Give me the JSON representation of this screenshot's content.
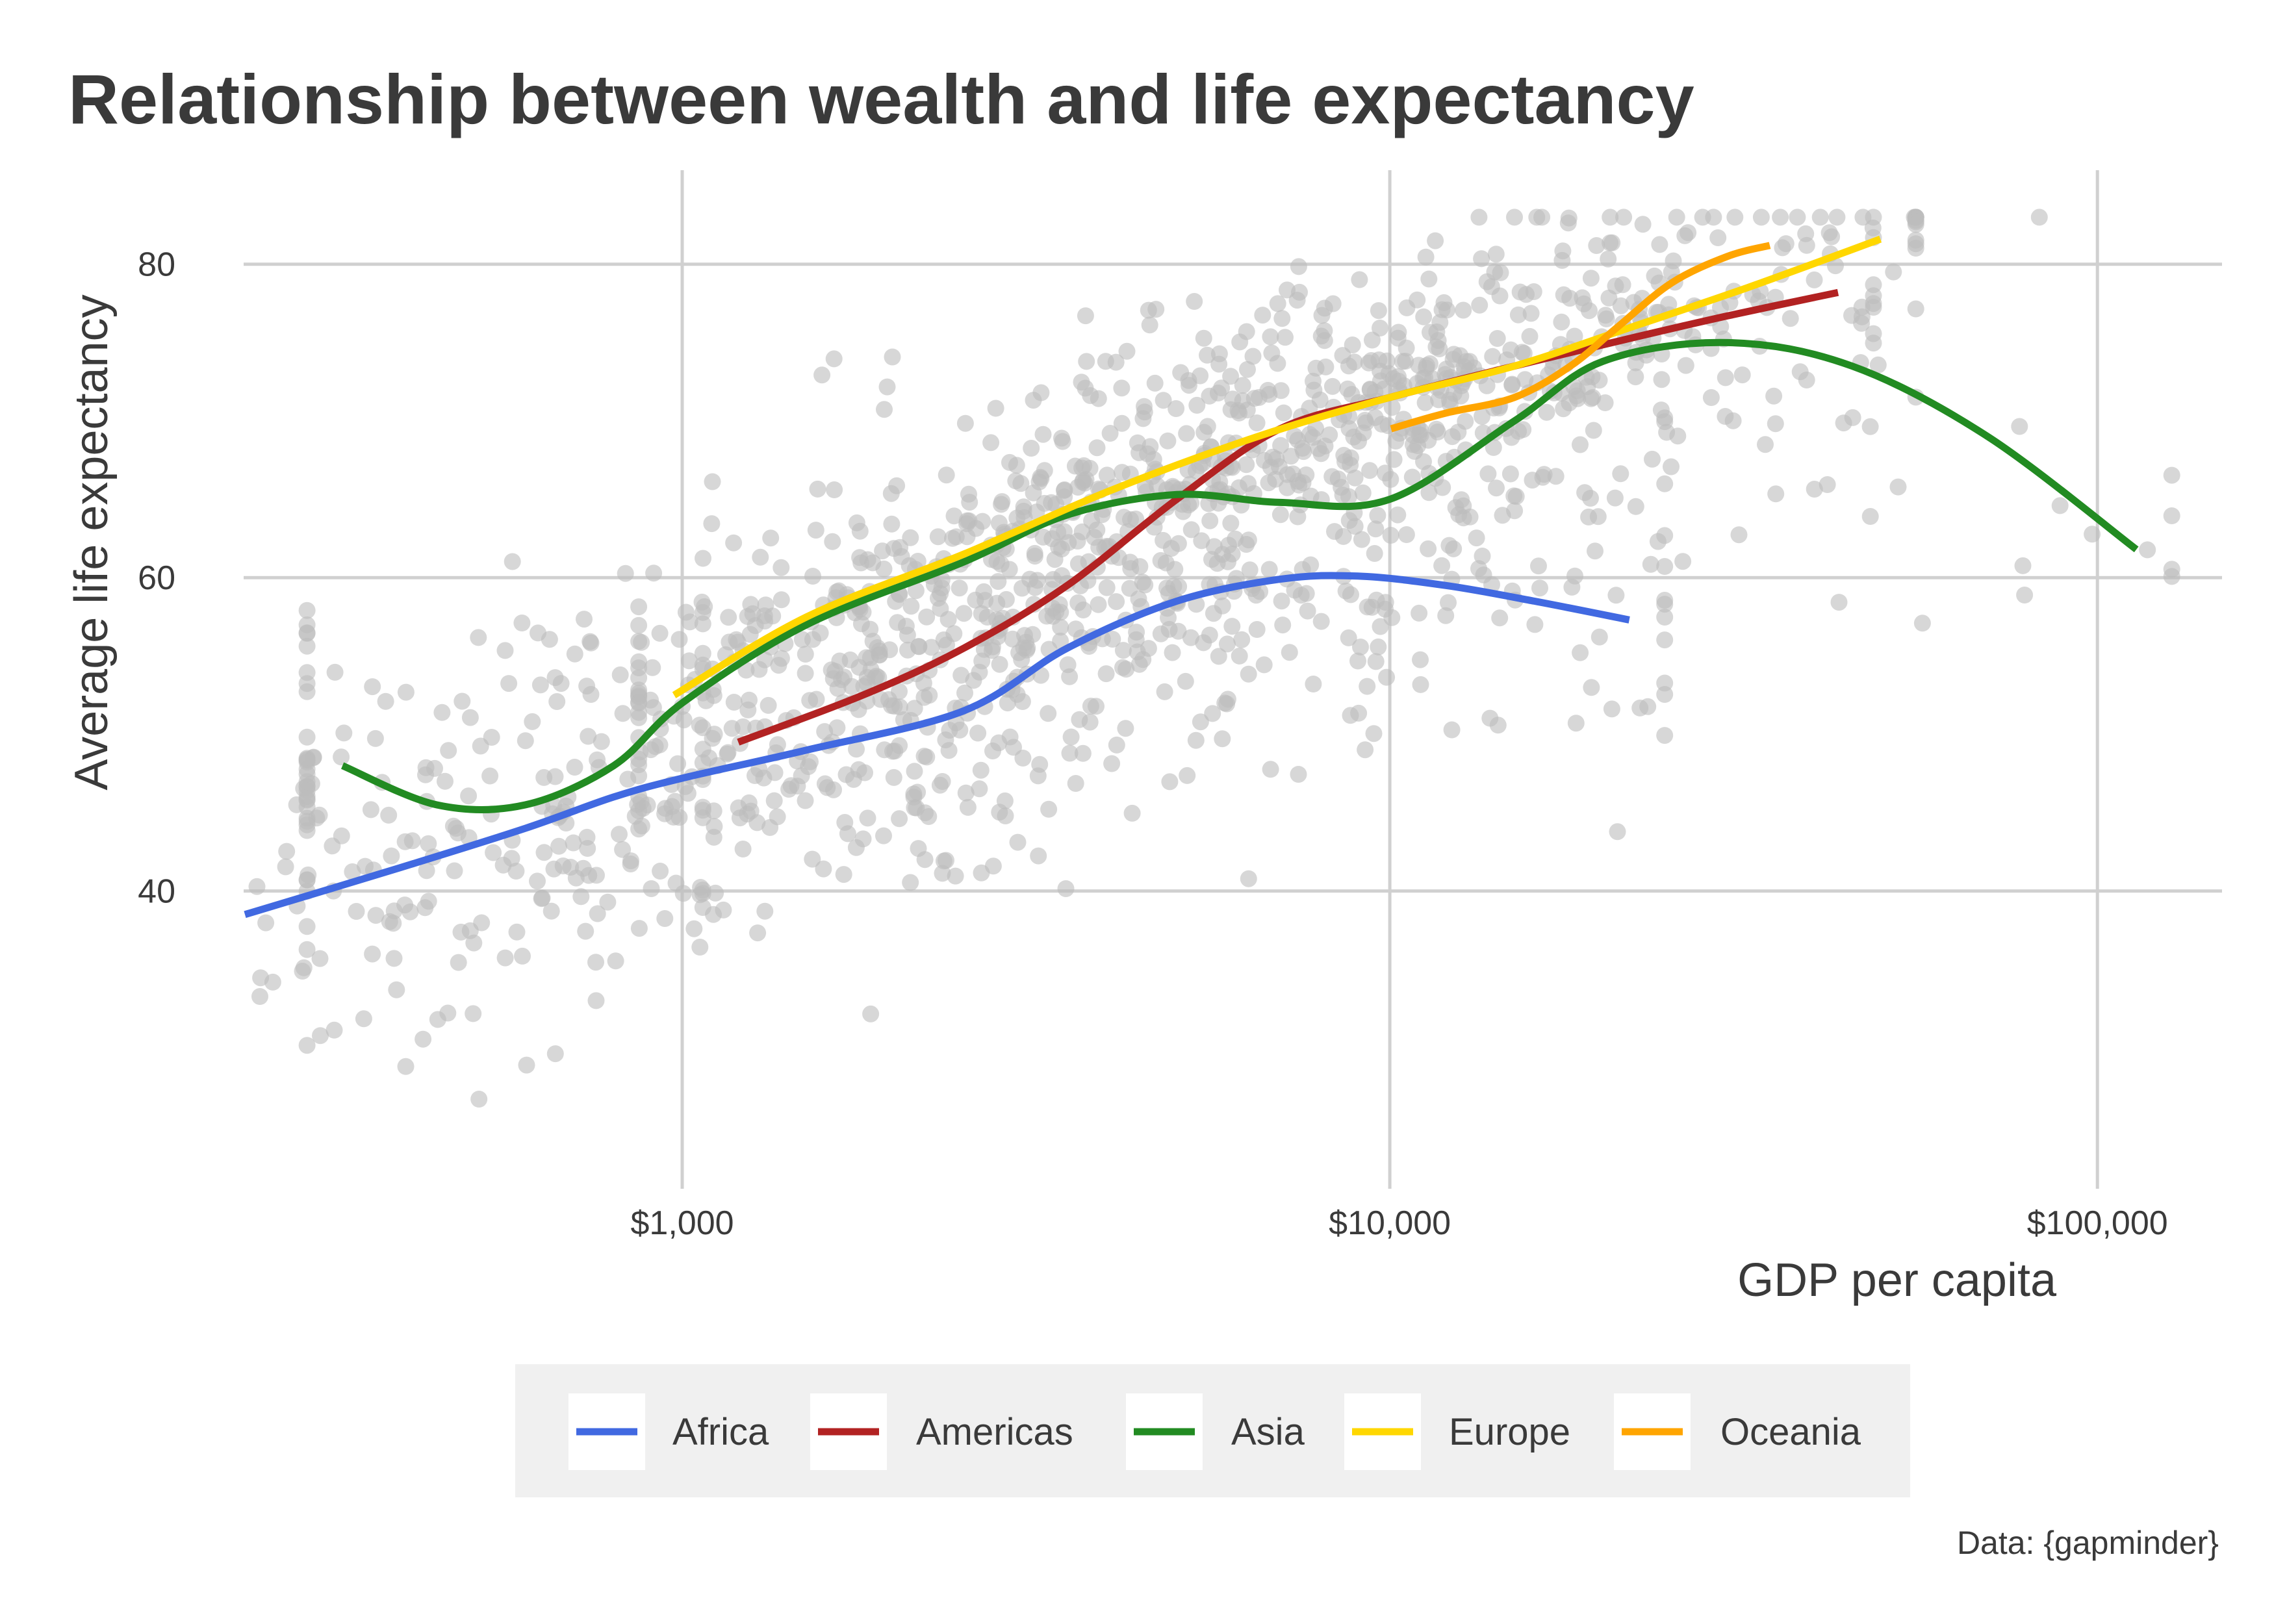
{
  "chart_data": {
    "type": "scatter",
    "title": "Relationship between wealth and life expectancy",
    "xlabel": "GDP per capita",
    "ylabel": "Average life expectancy",
    "caption": "Data: {gapminder}",
    "x_scale": "log10",
    "xlim": [
      240,
      150000
    ],
    "ylim": [
      21,
      86
    ],
    "grid": true,
    "legend_position": "bottom",
    "x_ticks": [
      {
        "value": 1000,
        "label": "$1,000"
      },
      {
        "value": 10000,
        "label": "$10,000"
      },
      {
        "value": 100000,
        "label": "$100,000"
      }
    ],
    "y_ticks": [
      {
        "value": 40,
        "label": "40"
      },
      {
        "value": 60,
        "label": "60"
      },
      {
        "value": 80,
        "label": "80"
      }
    ],
    "point_color": "#bdbdbd",
    "series": [
      {
        "name": "Africa",
        "color": "#4169E1",
        "type": "smooth-line",
        "x": [
          241,
          400,
          600,
          800,
          1000,
          1500,
          2500,
          3500,
          5000,
          7000,
          9000,
          12000,
          16000,
          21800
        ],
        "y": [
          38.5,
          41.5,
          44.0,
          46.0,
          47.2,
          49.0,
          51.5,
          55.5,
          58.5,
          59.9,
          60.1,
          59.5,
          58.5,
          57.3
        ]
      },
      {
        "name": "Americas",
        "color": "#B22222",
        "type": "smooth-line",
        "x": [
          1200,
          1800,
          2500,
          3500,
          5000,
          7000,
          10000,
          15000,
          22000,
          30000,
          43000
        ],
        "y": [
          49.5,
          52.5,
          55.5,
          59.5,
          65.0,
          69.5,
          71.5,
          73.5,
          75.3,
          76.7,
          78.2
        ]
      },
      {
        "name": "Asia",
        "color": "#228B22",
        "type": "smooth-line",
        "x": [
          331,
          450,
          600,
          800,
          1000,
          1500,
          2500,
          3500,
          5000,
          7000,
          10000,
          15000,
          20000,
          30000,
          45000,
          70000,
          113523
        ],
        "y": [
          48.0,
          45.5,
          45.5,
          48.0,
          52.0,
          57.0,
          61.0,
          64.0,
          65.3,
          64.8,
          65.0,
          70.0,
          73.8,
          75.0,
          73.5,
          69.0,
          61.8
        ]
      },
      {
        "name": "Europe",
        "color": "#FFD700",
        "type": "smooth-line",
        "x": [
          974,
          1500,
          2500,
          4000,
          6500,
          10000,
          15000,
          22000,
          32000,
          49357
        ],
        "y": [
          52.5,
          57.5,
          61.5,
          65.5,
          69.0,
          71.5,
          73.5,
          76.0,
          78.5,
          81.6
        ]
      },
      {
        "name": "Oceania",
        "color": "#FFA500",
        "type": "smooth-line",
        "x": [
          10040,
          12000,
          15000,
          18000,
          21000,
          25000,
          30000,
          34435
        ],
        "y": [
          69.5,
          70.5,
          71.5,
          73.5,
          76.0,
          78.8,
          80.5,
          81.2
        ]
      }
    ]
  }
}
